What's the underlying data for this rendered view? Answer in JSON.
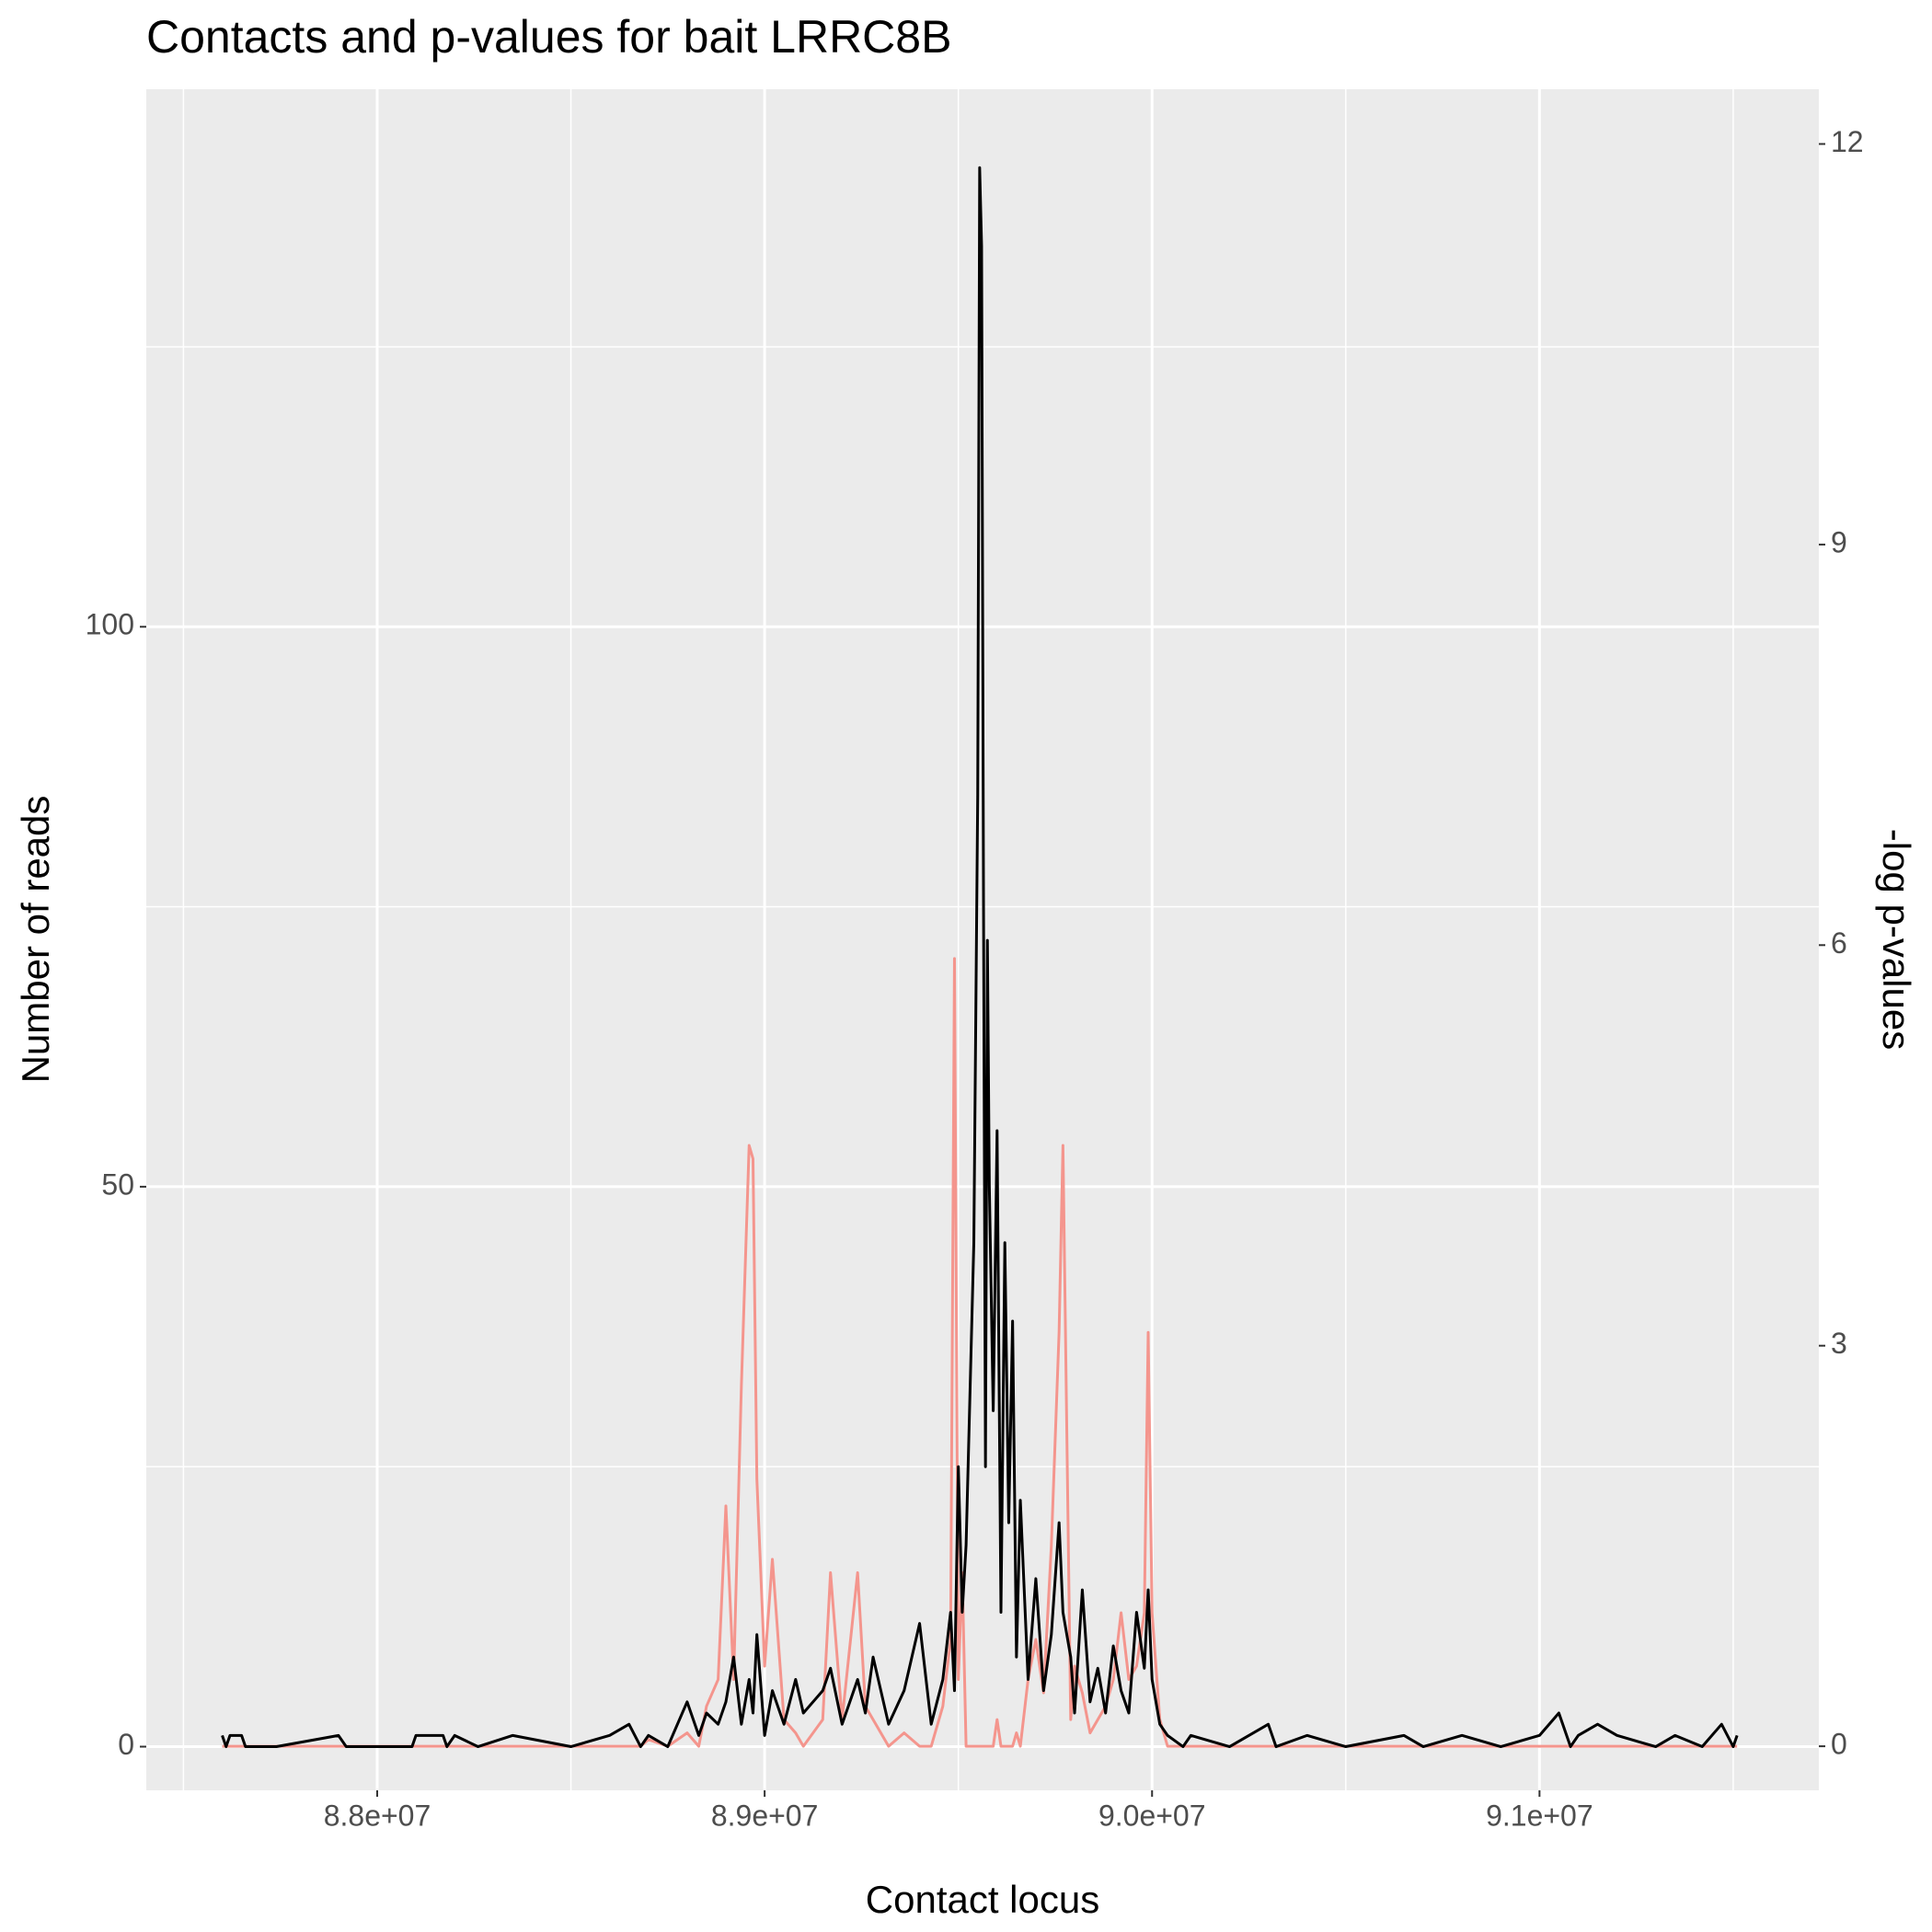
{
  "chart_data": {
    "type": "line",
    "title": "Contacts and p-values for bait LRRC8B",
    "x_label": "Contact locus",
    "y_label": "Number of reads",
    "y2_label": "-log p-values",
    "grid": true,
    "xlim": [
      87404000,
      91721000
    ],
    "ylim": [
      -3.9,
      148
    ],
    "y2lim": [
      -0.33,
      12.41
    ],
    "xticks": [
      {
        "value": 88000000,
        "label": "8.8e+07"
      },
      {
        "value": 89000000,
        "label": "8.9e+07"
      },
      {
        "value": 90000000,
        "label": "9.0e+07"
      },
      {
        "value": 91000000,
        "label": "9.1e+07"
      }
    ],
    "yticks": [
      0,
      50,
      100
    ],
    "y2ticks": [
      0,
      3,
      6,
      9,
      12
    ],
    "x": [
      87600000,
      87610000,
      87620000,
      87650000,
      87660000,
      87740000,
      87900000,
      87920000,
      88090000,
      88100000,
      88170000,
      88180000,
      88200000,
      88260000,
      88350000,
      88500000,
      88600000,
      88650000,
      88680000,
      88700000,
      88750000,
      88800000,
      88830000,
      88850000,
      88880000,
      88900000,
      88920000,
      88940000,
      88960000,
      88970000,
      88980000,
      89000000,
      89020000,
      89050000,
      89080000,
      89100000,
      89150000,
      89170000,
      89200000,
      89240000,
      89260000,
      89280000,
      89320000,
      89360000,
      89400000,
      89430000,
      89460000,
      89480000,
      89490000,
      89500000,
      89510000,
      89520000,
      89540000,
      89550000,
      89555000,
      89560000,
      89565000,
      89570000,
      89575000,
      89580000,
      89590000,
      89600000,
      89610000,
      89620000,
      89630000,
      89640000,
      89650000,
      89660000,
      89680000,
      89700000,
      89720000,
      89740000,
      89760000,
      89770000,
      89790000,
      89800000,
      89820000,
      89840000,
      89860000,
      89880000,
      89900000,
      89920000,
      89940000,
      89960000,
      89980000,
      89990000,
      90000000,
      90020000,
      90040000,
      90080000,
      90100000,
      90200000,
      90300000,
      90320000,
      90400000,
      90500000,
      90650000,
      90700000,
      90800000,
      90900000,
      91000000,
      91050000,
      91080000,
      91100000,
      91150000,
      91200000,
      91300000,
      91350000,
      91420000,
      91470000,
      91500000,
      91510000
    ],
    "series": [
      {
        "color": "#f4958d",
        "axis": "y2",
        "values": [
          0,
          0,
          0,
          0,
          0,
          0,
          0,
          0,
          0,
          0,
          0,
          0,
          0,
          0,
          0,
          0,
          0,
          0,
          0,
          0.05,
          0,
          0.1,
          0,
          0.3,
          0.5,
          1.8,
          0.5,
          2.7,
          4.5,
          4.4,
          2,
          0.6,
          1.4,
          0.2,
          0.1,
          0,
          0.2,
          1.3,
          0.2,
          1.3,
          0.3,
          0.2,
          0,
          0.1,
          0,
          0,
          0.3,
          0.8,
          5.9,
          0.5,
          1.3,
          0,
          0,
          0,
          0,
          0,
          0,
          0,
          0,
          0,
          0,
          0.2,
          0,
          0,
          0,
          0,
          0.1,
          0,
          0.5,
          0.8,
          0.4,
          1.5,
          3.1,
          4.5,
          0.2,
          0.6,
          0.4,
          0.1,
          0.2,
          0.3,
          0.5,
          1.0,
          0.5,
          0.6,
          1.0,
          3.1,
          1.0,
          0.2,
          0,
          0,
          0,
          0,
          0,
          0,
          0,
          0,
          0,
          0,
          0,
          0,
          0,
          0,
          0,
          0,
          0,
          0,
          0,
          0,
          0,
          0,
          0,
          0
        ]
      },
      {
        "color": "#000000",
        "axis": "y",
        "values": [
          1,
          0,
          1,
          1,
          0,
          0,
          1,
          0,
          0,
          1,
          1,
          0,
          1,
          0,
          1,
          0,
          1,
          2,
          0,
          1,
          0,
          4,
          1,
          3,
          2,
          4,
          8,
          2,
          6,
          3,
          10,
          1,
          5,
          2,
          6,
          3,
          5,
          7,
          2,
          6,
          3,
          8,
          2,
          5,
          11,
          2,
          6,
          12,
          5,
          25,
          12,
          18,
          45,
          85,
          141,
          134,
          75,
          25,
          72,
          50,
          30,
          55,
          12,
          45,
          20,
          38,
          8,
          22,
          6,
          15,
          5,
          10,
          20,
          12,
          8,
          3,
          14,
          4,
          7,
          3,
          9,
          5,
          3,
          12,
          7,
          14,
          6,
          2,
          1,
          0,
          1,
          0,
          2,
          0,
          1,
          0,
          1,
          0,
          1,
          0,
          1,
          3,
          0,
          1,
          2,
          1,
          0,
          1,
          0,
          2,
          0,
          1
        ]
      }
    ]
  }
}
